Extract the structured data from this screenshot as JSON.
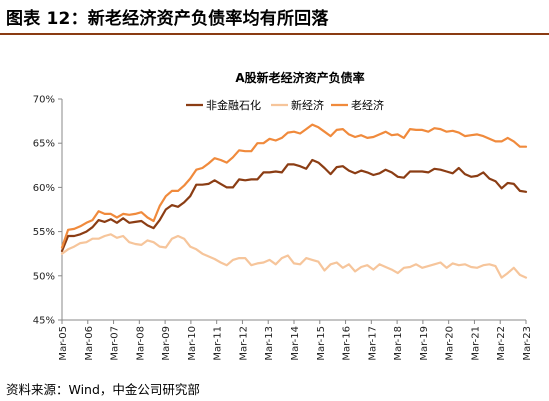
{
  "figure_title": "图表 12：新老经济资产负债率均有所回落",
  "source": "资料来源：Wind，中金公司研究部",
  "colors": {
    "title_rule": "#8a3b12",
    "series": [
      "#8b3d14",
      "#f6c59b",
      "#f08a3c"
    ],
    "axis": "#888888"
  },
  "chart_data": {
    "type": "line",
    "title": "A股新老经济资产负债率",
    "xlabel": "",
    "ylabel": "",
    "ylim": [
      0.45,
      0.7
    ],
    "y_ticks": [
      0.45,
      0.5,
      0.55,
      0.6,
      0.65,
      0.7
    ],
    "y_tick_labels": [
      "45%",
      "50%",
      "55%",
      "60%",
      "65%",
      "70%"
    ],
    "x_tick_labels": [
      "Mar-05",
      "Mar-06",
      "Mar-07",
      "Mar-08",
      "Mar-09",
      "Mar-10",
      "Mar-11",
      "Mar-12",
      "Mar-13",
      "Mar-14",
      "Mar-15",
      "Mar-16",
      "Mar-17",
      "Mar-18",
      "Mar-19",
      "Mar-20",
      "Mar-21",
      "Mar-22",
      "Mar-23"
    ],
    "legend_position": "top-center",
    "grid": false,
    "series": [
      {
        "name": "非金融石化",
        "values": [
          0.528,
          0.545,
          0.545,
          0.547,
          0.55,
          0.555,
          0.563,
          0.561,
          0.564,
          0.56,
          0.565,
          0.56,
          0.561,
          0.562,
          0.557,
          0.554,
          0.563,
          0.575,
          0.58,
          0.578,
          0.583,
          0.59,
          0.603,
          0.603,
          0.604,
          0.608,
          0.604,
          0.6,
          0.6,
          0.609,
          0.608,
          0.609,
          0.609,
          0.617,
          0.617,
          0.618,
          0.617,
          0.626,
          0.626,
          0.624,
          0.621,
          0.631,
          0.628,
          0.622,
          0.615,
          0.623,
          0.624,
          0.619,
          0.616,
          0.619,
          0.617,
          0.614,
          0.616,
          0.62,
          0.617,
          0.612,
          0.611,
          0.618,
          0.618,
          0.618,
          0.617,
          0.621,
          0.62,
          0.618,
          0.616,
          0.622,
          0.615,
          0.612,
          0.613,
          0.617,
          0.61,
          0.607,
          0.599,
          0.605,
          0.604,
          0.596,
          0.595
        ]
      },
      {
        "name": "新经济",
        "values": [
          0.525,
          0.53,
          0.533,
          0.537,
          0.538,
          0.542,
          0.542,
          0.545,
          0.547,
          0.543,
          0.545,
          0.538,
          0.536,
          0.535,
          0.54,
          0.538,
          0.533,
          0.532,
          0.542,
          0.545,
          0.542,
          0.533,
          0.53,
          0.525,
          0.522,
          0.519,
          0.515,
          0.512,
          0.518,
          0.52,
          0.52,
          0.512,
          0.514,
          0.515,
          0.518,
          0.513,
          0.52,
          0.523,
          0.514,
          0.513,
          0.52,
          0.518,
          0.516,
          0.506,
          0.513,
          0.515,
          0.509,
          0.513,
          0.505,
          0.51,
          0.512,
          0.507,
          0.513,
          0.51,
          0.507,
          0.503,
          0.509,
          0.51,
          0.513,
          0.509,
          0.511,
          0.513,
          0.515,
          0.509,
          0.514,
          0.512,
          0.513,
          0.51,
          0.509,
          0.512,
          0.513,
          0.511,
          0.498,
          0.503,
          0.509,
          0.501,
          0.498
        ]
      },
      {
        "name": "老经济",
        "values": [
          0.532,
          0.552,
          0.553,
          0.556,
          0.56,
          0.563,
          0.573,
          0.57,
          0.57,
          0.566,
          0.57,
          0.569,
          0.57,
          0.572,
          0.566,
          0.562,
          0.579,
          0.59,
          0.596,
          0.596,
          0.602,
          0.61,
          0.62,
          0.622,
          0.627,
          0.633,
          0.631,
          0.628,
          0.634,
          0.642,
          0.641,
          0.641,
          0.65,
          0.65,
          0.655,
          0.653,
          0.656,
          0.662,
          0.663,
          0.661,
          0.666,
          0.671,
          0.668,
          0.663,
          0.658,
          0.665,
          0.666,
          0.66,
          0.657,
          0.659,
          0.656,
          0.657,
          0.66,
          0.663,
          0.659,
          0.66,
          0.656,
          0.666,
          0.665,
          0.665,
          0.663,
          0.667,
          0.666,
          0.663,
          0.664,
          0.662,
          0.658,
          0.659,
          0.66,
          0.658,
          0.655,
          0.652,
          0.652,
          0.656,
          0.652,
          0.646,
          0.646
        ]
      }
    ]
  }
}
